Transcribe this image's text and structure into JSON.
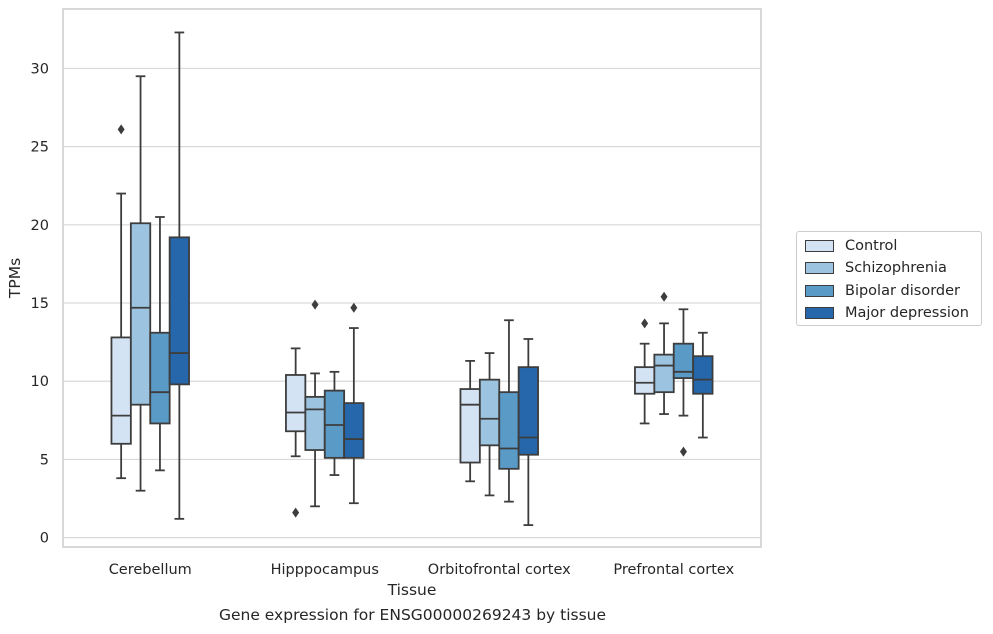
{
  "caption": "Gene expression for ENSG00000269243 by tissue",
  "colors": {
    "Control": "#d3e3f3",
    "Schizophrenia": "#9cc4e0",
    "Bipolar disorder": "#5a9ac7",
    "Major depression": "#2667ab",
    "box_edge": "#3d3d3d",
    "grid": "#d9d9d9",
    "frame": "#cccccc"
  },
  "chart_data": {
    "type": "box",
    "xlabel": "Tissue",
    "ylabel": "TPMs",
    "ylim": [
      -0.6,
      33.8
    ],
    "yticks": [
      0,
      5,
      10,
      15,
      20,
      25,
      30
    ],
    "grid": "horizontal",
    "legend_position": "right, outside plot",
    "categories": [
      "Cerebellum",
      "Hipppocampus",
      "Orbitofrontal cortex",
      "Prefrontal cortex"
    ],
    "series": [
      {
        "name": "Control",
        "boxes": [
          {
            "whisker_low": 3.8,
            "q1": 6.0,
            "median": 7.8,
            "q3": 12.8,
            "whisker_high": 22.0,
            "outliers": [
              26.1
            ]
          },
          {
            "whisker_low": 5.2,
            "q1": 6.8,
            "median": 8.0,
            "q3": 10.4,
            "whisker_high": 12.1,
            "outliers": [
              1.6
            ]
          },
          {
            "whisker_low": 3.6,
            "q1": 4.8,
            "median": 8.5,
            "q3": 9.5,
            "whisker_high": 11.3,
            "outliers": []
          },
          {
            "whisker_low": 7.3,
            "q1": 9.2,
            "median": 9.9,
            "q3": 10.9,
            "whisker_high": 12.4,
            "outliers": [
              13.7
            ]
          }
        ]
      },
      {
        "name": "Schizophrenia",
        "boxes": [
          {
            "whisker_low": 3.0,
            "q1": 8.5,
            "median": 14.7,
            "q3": 20.1,
            "whisker_high": 29.5,
            "outliers": []
          },
          {
            "whisker_low": 2.0,
            "q1": 5.6,
            "median": 8.2,
            "q3": 9.0,
            "whisker_high": 10.5,
            "outliers": [
              14.9
            ]
          },
          {
            "whisker_low": 2.7,
            "q1": 5.9,
            "median": 7.6,
            "q3": 10.1,
            "whisker_high": 11.8,
            "outliers": []
          },
          {
            "whisker_low": 7.9,
            "q1": 9.3,
            "median": 11.0,
            "q3": 11.7,
            "whisker_high": 13.7,
            "outliers": [
              15.4
            ]
          }
        ]
      },
      {
        "name": "Bipolar disorder",
        "boxes": [
          {
            "whisker_low": 4.3,
            "q1": 7.3,
            "median": 9.3,
            "q3": 13.1,
            "whisker_high": 20.5,
            "outliers": []
          },
          {
            "whisker_low": 4.0,
            "q1": 5.1,
            "median": 7.2,
            "q3": 9.4,
            "whisker_high": 10.6,
            "outliers": []
          },
          {
            "whisker_low": 2.3,
            "q1": 4.4,
            "median": 5.7,
            "q3": 9.3,
            "whisker_high": 13.9,
            "outliers": []
          },
          {
            "whisker_low": 7.8,
            "q1": 10.2,
            "median": 10.6,
            "q3": 12.4,
            "whisker_high": 14.6,
            "outliers": [
              5.5
            ]
          }
        ]
      },
      {
        "name": "Major depression",
        "boxes": [
          {
            "whisker_low": 1.2,
            "q1": 9.8,
            "median": 11.8,
            "q3": 19.2,
            "whisker_high": 32.3,
            "outliers": []
          },
          {
            "whisker_low": 2.2,
            "q1": 5.1,
            "median": 6.3,
            "q3": 8.6,
            "whisker_high": 13.4,
            "outliers": [
              14.7
            ]
          },
          {
            "whisker_low": 0.8,
            "q1": 5.3,
            "median": 6.4,
            "q3": 10.9,
            "whisker_high": 12.7,
            "outliers": []
          },
          {
            "whisker_low": 6.4,
            "q1": 9.2,
            "median": 10.1,
            "q3": 11.6,
            "whisker_high": 13.1,
            "outliers": []
          }
        ]
      }
    ]
  }
}
